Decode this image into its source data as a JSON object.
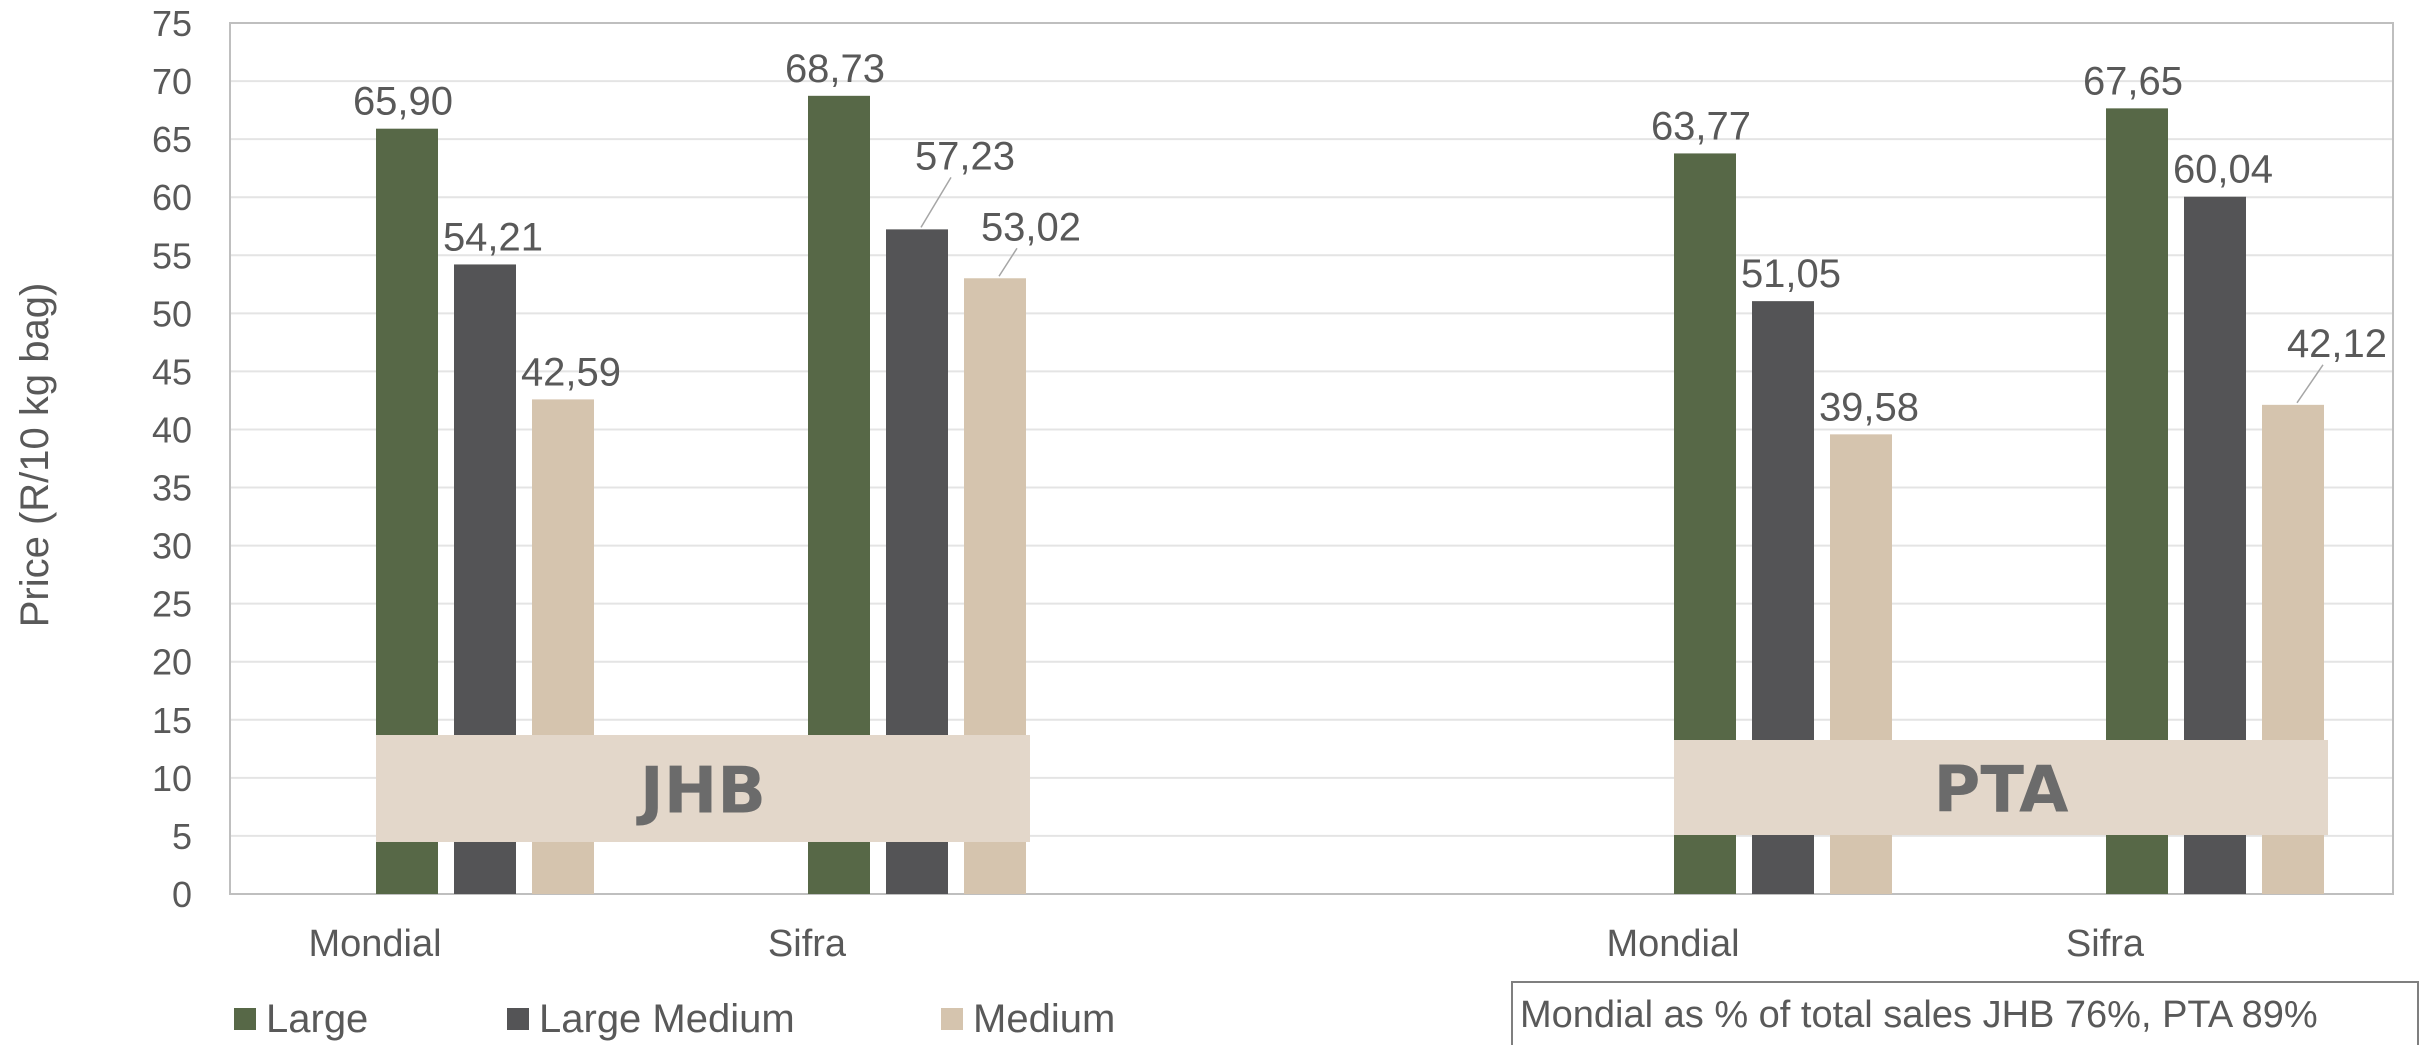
{
  "chart_data": {
    "type": "bar",
    "ylabel": "Price (R/10 kg bag)",
    "ylim": [
      0,
      75
    ],
    "ytick_step": 5,
    "grid": true,
    "categories": [
      "Mondial",
      "Sifra",
      "Mondial",
      "Sifra"
    ],
    "groups": [
      {
        "label": "JHB",
        "categories": [
          0,
          1
        ]
      },
      {
        "label": "PTA",
        "categories": [
          2,
          3
        ]
      }
    ],
    "series": [
      {
        "name": "Large",
        "color": "#576847",
        "values": [
          65.9,
          68.73,
          63.77,
          67.65
        ],
        "labels": [
          "65,90",
          "68,73",
          "63,77",
          "67,65"
        ]
      },
      {
        "name": "Large Medium",
        "color": "#545456",
        "values": [
          54.21,
          57.23,
          51.05,
          60.04
        ],
        "labels": [
          "54,21",
          "57,23",
          "51,05",
          "60,04"
        ]
      },
      {
        "name": "Medium",
        "color": "#d5c4ae",
        "values": [
          42.59,
          53.02,
          39.58,
          42.12
        ],
        "labels": [
          "42,59",
          "53,02",
          "39,58",
          "42,12"
        ]
      }
    ],
    "legend_position": "bottom-left",
    "note": "Mondial as % of total sales JHB 76%, PTA 89%"
  }
}
